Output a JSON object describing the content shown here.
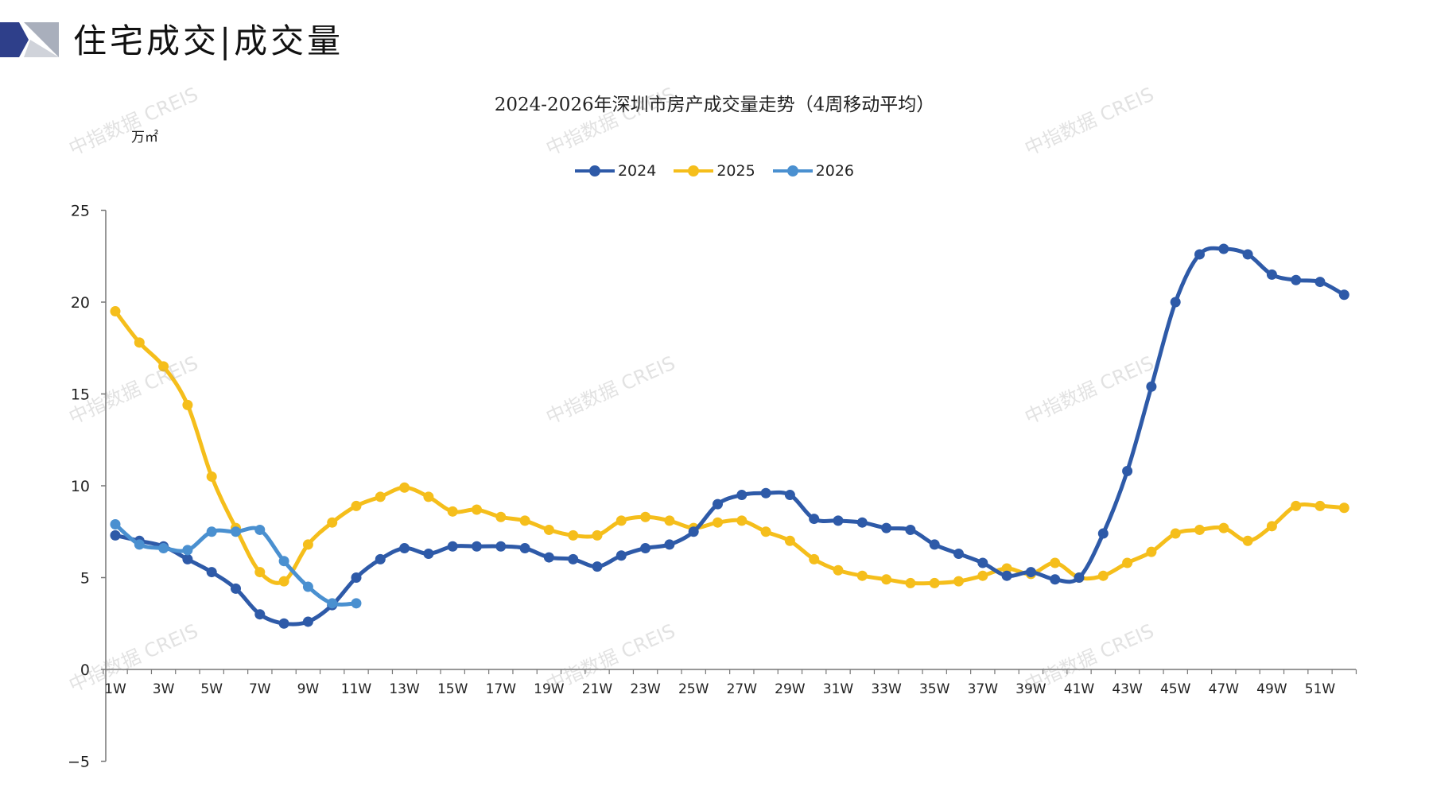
{
  "page_title": "住宅成交|成交量",
  "watermark_text": "中指数据 CREIS",
  "colors": {
    "2024": "#2E5AA8",
    "2025": "#F5BE1B",
    "2026": "#4A90D0",
    "axis": "#777777",
    "logo_dark": "#2E3F8A",
    "logo_grey": "#A9AFBC"
  },
  "chart_data": {
    "type": "line",
    "title": "2024-2026年深圳市房产成交量走势（4周移动平均）",
    "unit": "万㎡",
    "ylim": [
      -5,
      25
    ],
    "y_ticks": [
      -5,
      0,
      5,
      10,
      15,
      20,
      25
    ],
    "x_tick_labels": [
      "1W",
      "3W",
      "5W",
      "7W",
      "9W",
      "11W",
      "13W",
      "15W",
      "17W",
      "19W",
      "21W",
      "23W",
      "25W",
      "27W",
      "29W",
      "31W",
      "33W",
      "35W",
      "37W",
      "39W",
      "41W",
      "43W",
      "45W",
      "47W",
      "49W",
      "51W"
    ],
    "weeks": 52,
    "legend_position": "top-center",
    "grid": false,
    "series": [
      {
        "name": "2024",
        "values": [
          7.3,
          7.0,
          6.7,
          6.0,
          5.3,
          4.4,
          3.0,
          2.5,
          2.6,
          3.5,
          5.0,
          6.0,
          6.6,
          6.3,
          6.7,
          6.7,
          6.7,
          6.6,
          6.1,
          6.0,
          5.6,
          6.2,
          6.6,
          6.8,
          7.5,
          9.0,
          9.5,
          9.6,
          9.5,
          8.2,
          8.1,
          8.0,
          7.7,
          7.6,
          6.8,
          6.3,
          5.8,
          5.1,
          5.3,
          4.9,
          5.0,
          7.4,
          10.8,
          15.4,
          20.0,
          22.6,
          22.9,
          22.6,
          21.5,
          21.2,
          21.1,
          20.4
        ]
      },
      {
        "name": "2025",
        "values": [
          19.5,
          17.8,
          16.5,
          14.4,
          10.5,
          7.7,
          5.3,
          4.8,
          6.8,
          8.0,
          8.9,
          9.4,
          9.9,
          9.4,
          8.6,
          8.7,
          8.3,
          8.1,
          7.6,
          7.3,
          7.3,
          8.1,
          8.3,
          8.1,
          7.7,
          8.0,
          8.1,
          7.5,
          7.0,
          6.0,
          5.4,
          5.1,
          4.9,
          4.7,
          4.7,
          4.8,
          5.1,
          5.5,
          5.2,
          5.8,
          5.0,
          5.1,
          5.8,
          6.4,
          7.4,
          7.6,
          7.7,
          7.0,
          7.8,
          8.9,
          8.9,
          8.8
        ]
      },
      {
        "name": "2026",
        "values": [
          7.9,
          6.8,
          6.6,
          6.5,
          7.5,
          7.5,
          7.6,
          5.9,
          4.5,
          3.6,
          3.6
        ]
      }
    ]
  }
}
